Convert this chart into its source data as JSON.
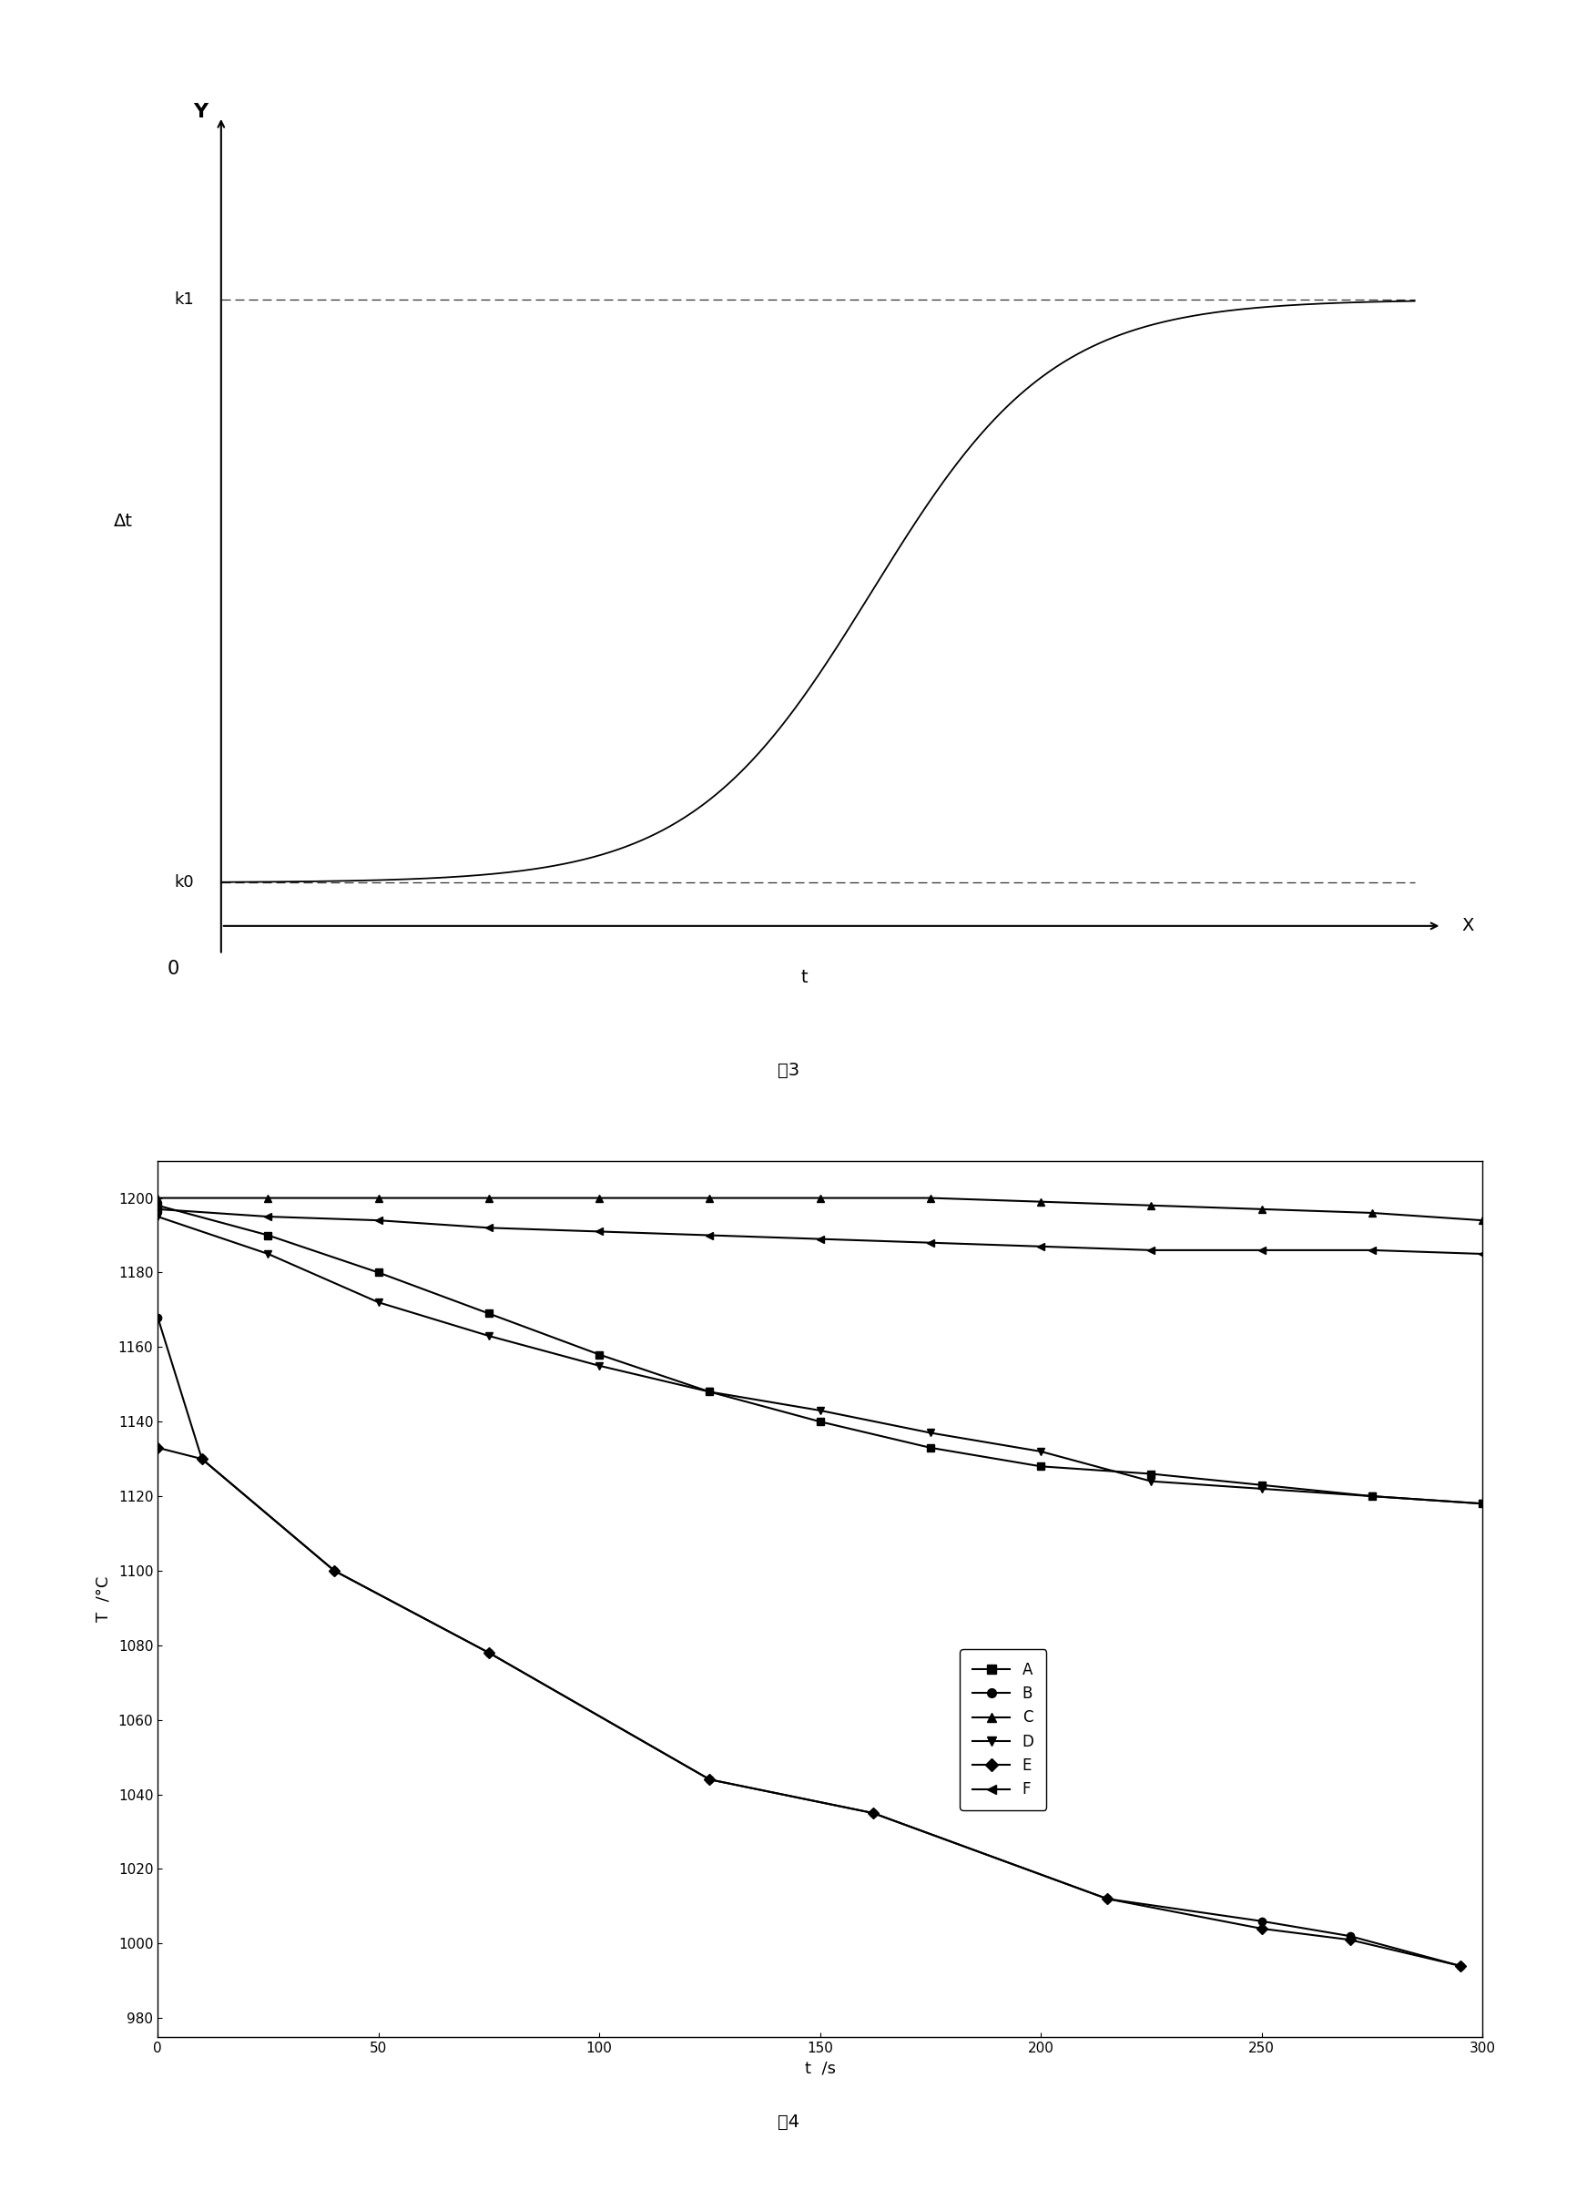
{
  "fig3": {
    "title": "图3",
    "xlabel_mid": "t",
    "x_arrow_label": "X",
    "y_arrow_label": "Y",
    "delta_t_label": "Δt",
    "k0_label": "k0",
    "k1_label": "k1",
    "origin_label": "0"
  },
  "fig4": {
    "title": "图4",
    "xlabel": "t  /s",
    "ylabel": "T  /°C",
    "xlim": [
      0,
      300
    ],
    "ylim": [
      975,
      1210
    ],
    "xticks": [
      0,
      50,
      100,
      150,
      200,
      250,
      300
    ],
    "yticks": [
      980,
      1000,
      1020,
      1040,
      1060,
      1080,
      1100,
      1120,
      1140,
      1160,
      1180,
      1200
    ],
    "series": {
      "A": {
        "t": [
          0,
          25,
          50,
          75,
          100,
          125,
          150,
          175,
          200,
          225,
          250,
          275,
          300
        ],
        "T": [
          1198,
          1190,
          1180,
          1169,
          1158,
          1148,
          1140,
          1133,
          1128,
          1126,
          1123,
          1120,
          1118
        ],
        "marker": "s"
      },
      "B": {
        "t": [
          0,
          10,
          40,
          75,
          125,
          162,
          215,
          250,
          270,
          295
        ],
        "T": [
          1168,
          1130,
          1100,
          1078,
          1044,
          1035,
          1012,
          1006,
          1002,
          994
        ],
        "marker": "o"
      },
      "C": {
        "t": [
          0,
          25,
          50,
          75,
          100,
          125,
          150,
          175,
          200,
          225,
          250,
          275,
          300
        ],
        "T": [
          1200,
          1200,
          1200,
          1200,
          1200,
          1200,
          1200,
          1200,
          1199,
          1198,
          1197,
          1196,
          1194
        ],
        "marker": "^"
      },
      "D": {
        "t": [
          0,
          25,
          50,
          75,
          100,
          125,
          150,
          175,
          200,
          225,
          250,
          275,
          300
        ],
        "T": [
          1195,
          1185,
          1172,
          1163,
          1155,
          1148,
          1143,
          1137,
          1132,
          1124,
          1122,
          1120,
          1118
        ],
        "marker": "v"
      },
      "E": {
        "t": [
          0,
          10,
          40,
          75,
          125,
          162,
          215,
          250,
          270,
          295
        ],
        "T": [
          1133,
          1130,
          1100,
          1078,
          1044,
          1035,
          1012,
          1004,
          1001,
          994
        ],
        "marker": "D"
      },
      "F": {
        "t": [
          0,
          25,
          50,
          75,
          100,
          125,
          150,
          175,
          200,
          225,
          250,
          275,
          300
        ],
        "T": [
          1197,
          1195,
          1194,
          1192,
          1191,
          1190,
          1189,
          1188,
          1187,
          1186,
          1186,
          1186,
          1185
        ],
        "marker": "<"
      }
    },
    "legend_order": [
      "A",
      "B",
      "C",
      "D",
      "E",
      "F"
    ]
  }
}
